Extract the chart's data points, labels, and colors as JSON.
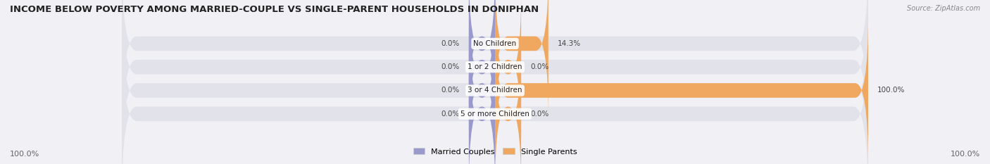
{
  "title": "INCOME BELOW POVERTY AMONG MARRIED-COUPLE VS SINGLE-PARENT HOUSEHOLDS IN DONIPHAN",
  "source": "Source: ZipAtlas.com",
  "categories": [
    "No Children",
    "1 or 2 Children",
    "3 or 4 Children",
    "5 or more Children"
  ],
  "married_values": [
    0.0,
    0.0,
    0.0,
    0.0
  ],
  "single_values": [
    14.3,
    0.0,
    100.0,
    0.0
  ],
  "married_color": "#9999cc",
  "single_color": "#f0a860",
  "bg_color": "#f0f0f5",
  "bar_bg_color": "#e2e2ea",
  "title_fontsize": 9.5,
  "label_fontsize": 7.5,
  "tick_fontsize": 8,
  "legend_fontsize": 8,
  "max_val": 100.0,
  "left_label": "100.0%",
  "right_label": "100.0%"
}
